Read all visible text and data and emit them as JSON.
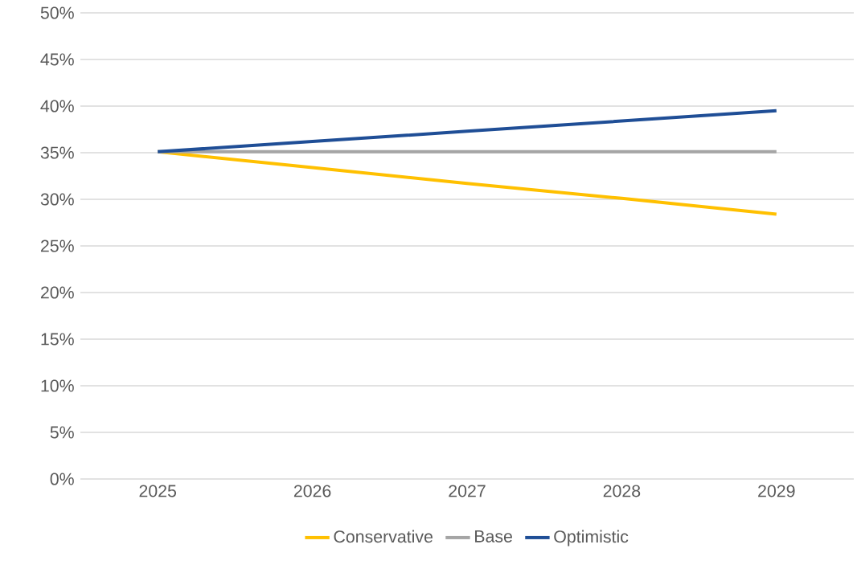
{
  "chart_data": {
    "type": "line",
    "categories": [
      "2025",
      "2026",
      "2027",
      "2028",
      "2029"
    ],
    "series": [
      {
        "name": "Conservative",
        "color": "#ffc000",
        "values": [
          35.1,
          33.4,
          31.7,
          30.1,
          28.4
        ]
      },
      {
        "name": "Base",
        "color": "#a5a5a5",
        "values": [
          35.1,
          35.1,
          35.1,
          35.1,
          35.1
        ]
      },
      {
        "name": "Optimistic",
        "color": "#1f4e96",
        "values": [
          35.1,
          36.2,
          37.3,
          38.4,
          39.5
        ]
      }
    ],
    "ylim": [
      0,
      50
    ],
    "yticks": [
      {
        "value": 0,
        "label": "0%"
      },
      {
        "value": 5,
        "label": "5%"
      },
      {
        "value": 10,
        "label": "10%"
      },
      {
        "value": 15,
        "label": "15%"
      },
      {
        "value": 20,
        "label": "20%"
      },
      {
        "value": 25,
        "label": "25%"
      },
      {
        "value": 30,
        "label": "30%"
      },
      {
        "value": 35,
        "label": "35%"
      },
      {
        "value": 40,
        "label": "40%"
      },
      {
        "value": 45,
        "label": "45%"
      },
      {
        "value": 50,
        "label": "50%"
      }
    ],
    "grid": "y",
    "legend": "bottom"
  }
}
